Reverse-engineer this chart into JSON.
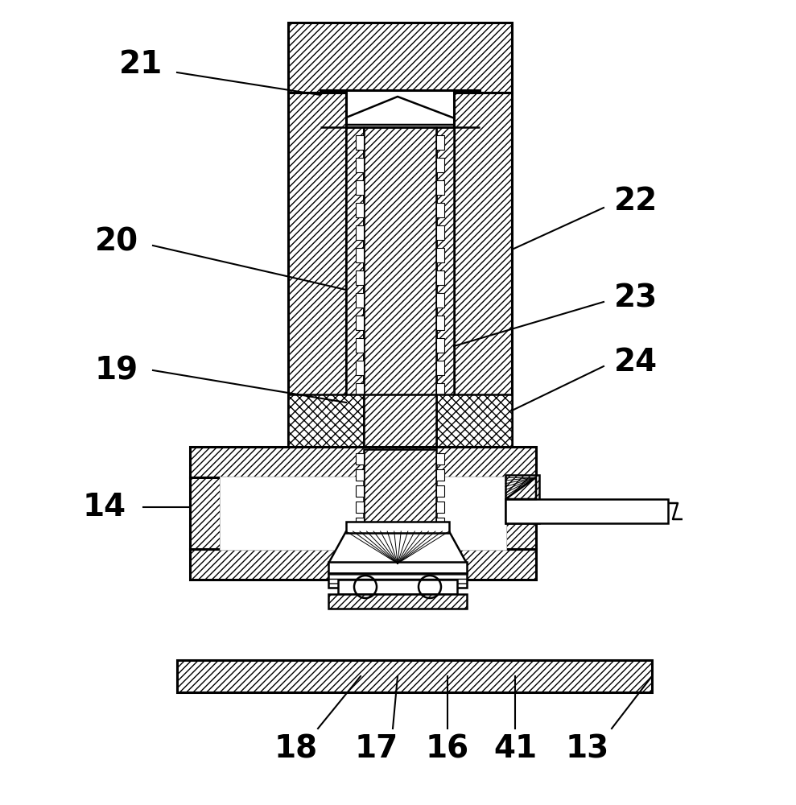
{
  "bg_color": "#ffffff",
  "line_color": "#000000",
  "label_fontsize": 28,
  "annotation_lw": 1.5,
  "lw": 1.8
}
